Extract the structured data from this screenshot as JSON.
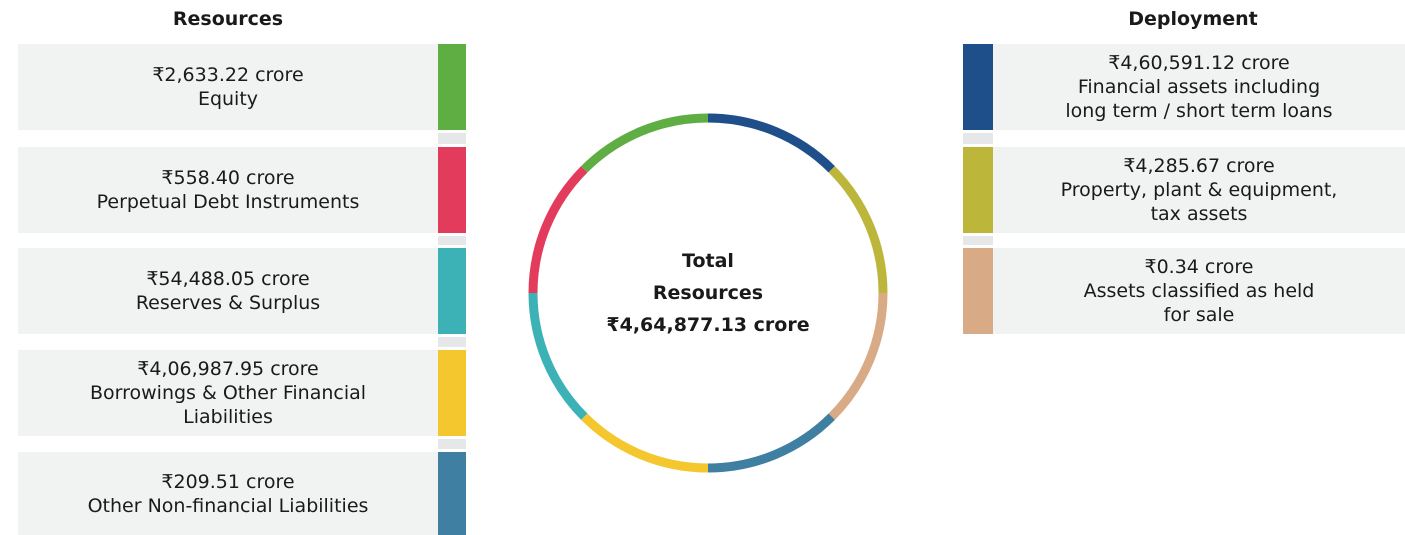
{
  "resources": {
    "title": "Resources",
    "items": [
      {
        "amount": "₹2,633.22 crore",
        "lines": [
          "Equity"
        ],
        "color": "#5eae44"
      },
      {
        "amount": "₹558.40 crore",
        "lines": [
          "Perpetual Debt Instruments"
        ],
        "color": "#e23b5b"
      },
      {
        "amount": "₹54,488.05 crore",
        "lines": [
          "Reserves & Surplus"
        ],
        "color": "#3cb2b6"
      },
      {
        "amount": "₹4,06,987.95 crore",
        "lines": [
          "Borrowings & Other Financial",
          "Liabilities"
        ],
        "color": "#f4c72f"
      },
      {
        "amount": "₹209.51 crore",
        "lines": [
          "Other Non-financial Liabilities"
        ],
        "color": "#3f7fa2"
      }
    ]
  },
  "deployment": {
    "title": "Deployment",
    "items": [
      {
        "amount": "₹4,60,591.12 crore",
        "lines": [
          "Financial assets including",
          "long term / short term loans"
        ],
        "color": "#1f4f8b"
      },
      {
        "amount": "₹4,285.67 crore",
        "lines": [
          "Property, plant & equipment,",
          "tax assets"
        ],
        "color": "#bcb73b"
      },
      {
        "amount": "₹0.34 crore",
        "lines": [
          "Assets classified as held",
          "for sale"
        ],
        "color": "#d8aa86"
      }
    ]
  },
  "center": {
    "lines": [
      "Total",
      "Resources",
      "₹4,64,877.13 crore"
    ]
  }
}
